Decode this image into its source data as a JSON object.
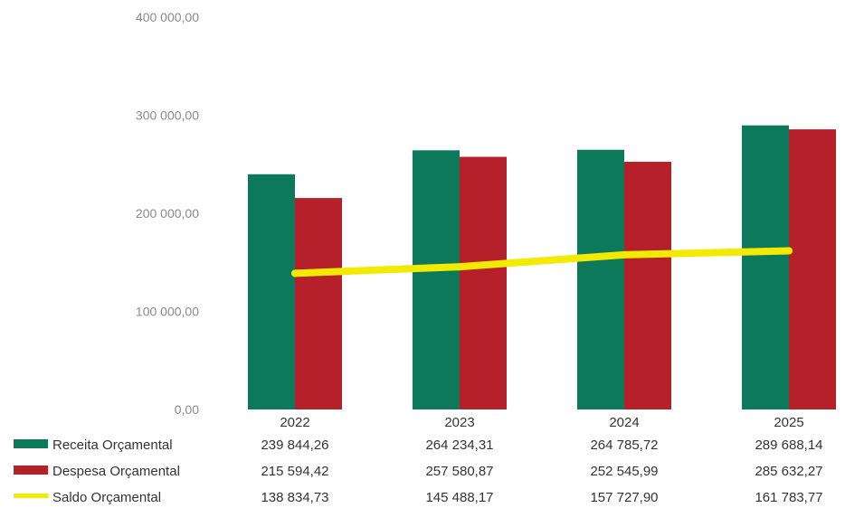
{
  "colors": {
    "receita": "#0c7a5a",
    "despesa": "#b5202b",
    "saldo": "#f2ea00"
  },
  "chart_data": {
    "type": "bar",
    "categories": [
      "2022",
      "2023",
      "2024",
      "2025"
    ],
    "ylim": [
      0,
      400000
    ],
    "yticks": [
      0,
      100000,
      200000,
      300000,
      400000
    ],
    "ytick_labels": [
      "0,00",
      "100 000,00",
      "200 000,00",
      "300 000,00",
      "400 000,00"
    ],
    "grid": false,
    "legend_position": "bottom-left data table",
    "series": [
      {
        "name": "Receita Orçamental",
        "kind": "bar",
        "color": "#0c7a5a",
        "values": [
          239844.26,
          264234.31,
          264785.72,
          289688.14
        ],
        "labels": [
          "239 844,26",
          "264 234,31",
          "264 785,72",
          "289 688,14"
        ]
      },
      {
        "name": "Despesa Orçamental",
        "kind": "bar",
        "color": "#b5202b",
        "values": [
          215594.42,
          257580.87,
          252545.99,
          285632.27
        ],
        "labels": [
          "215 594,42",
          "257 580,87",
          "252 545,99",
          "285 632,27"
        ]
      },
      {
        "name": "Saldo Orçamental",
        "kind": "line",
        "color": "#f2ea00",
        "values": [
          138834.73,
          145488.17,
          157727.9,
          161783.77
        ],
        "labels": [
          "138 834,73",
          "145 488,17",
          "157 727,90",
          "161 783,77"
        ]
      }
    ]
  }
}
